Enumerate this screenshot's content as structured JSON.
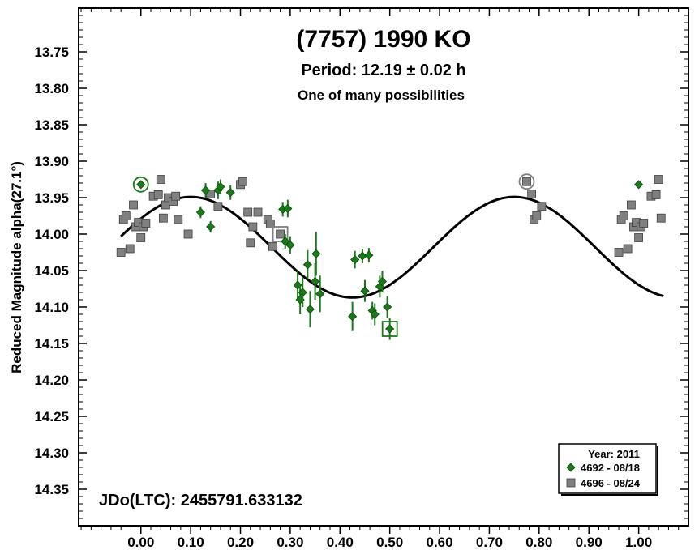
{
  "chart_data": {
    "type": "scatter",
    "title": "(7757) 1990 KO",
    "subtitle": "Period: 12.19 ± 0.02 h",
    "note": "One of many possibilities",
    "ylabel": "Reduced Magnitude alpha(27.1°)",
    "jd_label": "JDo(LTC): 2455791.633132",
    "xlim": [
      -0.125,
      1.1
    ],
    "ylim": [
      14.4,
      13.69
    ],
    "y_inverted": true,
    "x_ticks": [
      "0.00",
      "0.10",
      "0.20",
      "0.30",
      "0.40",
      "0.50",
      "0.60",
      "0.70",
      "0.80",
      "0.90",
      "1.00"
    ],
    "y_ticks": [
      "13.75",
      "13.80",
      "13.85",
      "13.90",
      "13.95",
      "14.00",
      "14.05",
      "14.10",
      "14.15",
      "14.20",
      "14.25",
      "14.30",
      "14.35"
    ],
    "legend": {
      "title": "Year: 2011",
      "position": "bottom-right"
    },
    "colors": {
      "green": "#1a7a1a",
      "gray": "#808080",
      "curve": "#000000"
    },
    "fit_curve": {
      "mean": 14.018,
      "amplitude": 0.069,
      "phase_of_max_brightness": 0.1,
      "harmonic_period": 0.65
    },
    "series": [
      {
        "name": "4692 - 08/18",
        "marker": "diamond",
        "color": "#1a7a1a",
        "points": [
          {
            "x": 0.0,
            "y": 13.932,
            "err": 0.0,
            "circled": true
          },
          {
            "x": 0.12,
            "y": 13.97,
            "err": 0.008
          },
          {
            "x": 0.13,
            "y": 13.94,
            "err": 0.01
          },
          {
            "x": 0.14,
            "y": 13.99,
            "err": 0.008
          },
          {
            "x": 0.155,
            "y": 13.94,
            "err": 0.012
          },
          {
            "x": 0.16,
            "y": 13.935,
            "err": 0.01
          },
          {
            "x": 0.18,
            "y": 13.943,
            "err": 0.01
          },
          {
            "x": 0.285,
            "y": 13.966,
            "err": 0.01
          },
          {
            "x": 0.295,
            "y": 13.965,
            "err": 0.012
          },
          {
            "x": 0.29,
            "y": 14.01,
            "err": 0.01
          },
          {
            "x": 0.3,
            "y": 14.015,
            "err": 0.012
          },
          {
            "x": 0.315,
            "y": 14.07,
            "err": 0.02
          },
          {
            "x": 0.32,
            "y": 14.09,
            "err": 0.02
          },
          {
            "x": 0.325,
            "y": 14.08,
            "err": 0.02
          },
          {
            "x": 0.335,
            "y": 14.042,
            "err": 0.02
          },
          {
            "x": 0.34,
            "y": 14.103,
            "err": 0.025
          },
          {
            "x": 0.35,
            "y": 14.065,
            "err": 0.025
          },
          {
            "x": 0.352,
            "y": 14.027,
            "err": 0.03
          },
          {
            "x": 0.36,
            "y": 14.082,
            "err": 0.025
          },
          {
            "x": 0.425,
            "y": 14.113,
            "err": 0.02
          },
          {
            "x": 0.43,
            "y": 14.035,
            "err": 0.012
          },
          {
            "x": 0.445,
            "y": 14.03,
            "err": 0.01
          },
          {
            "x": 0.45,
            "y": 14.078,
            "err": 0.015
          },
          {
            "x": 0.458,
            "y": 14.029,
            "err": 0.01
          },
          {
            "x": 0.465,
            "y": 14.105,
            "err": 0.012
          },
          {
            "x": 0.47,
            "y": 14.11,
            "err": 0.015
          },
          {
            "x": 0.48,
            "y": 14.072,
            "err": 0.015
          },
          {
            "x": 0.485,
            "y": 14.065,
            "err": 0.015
          },
          {
            "x": 0.495,
            "y": 14.1,
            "err": 0.015
          },
          {
            "x": 0.5,
            "y": 14.13,
            "err": 0.015,
            "boxed": true
          },
          {
            "x": 1.0,
            "y": 13.932,
            "err": 0.0
          }
        ]
      },
      {
        "name": "4696 - 08/24",
        "marker": "square",
        "color": "#808080",
        "points": [
          {
            "x": -0.04,
            "y": 14.025
          },
          {
            "x": -0.035,
            "y": 13.98
          },
          {
            "x": -0.03,
            "y": 13.975
          },
          {
            "x": -0.022,
            "y": 14.02
          },
          {
            "x": -0.015,
            "y": 13.96
          },
          {
            "x": -0.01,
            "y": 13.99
          },
          {
            "x": -0.005,
            "y": 13.984
          },
          {
            "x": 0.0,
            "y": 14.005
          },
          {
            "x": 0.005,
            "y": 13.99
          },
          {
            "x": 0.01,
            "y": 13.985
          },
          {
            "x": 0.025,
            "y": 13.948
          },
          {
            "x": 0.035,
            "y": 13.946
          },
          {
            "x": 0.04,
            "y": 13.925
          },
          {
            "x": 0.045,
            "y": 13.978
          },
          {
            "x": 0.05,
            "y": 13.96
          },
          {
            "x": 0.055,
            "y": 13.95
          },
          {
            "x": 0.065,
            "y": 13.955
          },
          {
            "x": 0.07,
            "y": 13.948
          },
          {
            "x": 0.075,
            "y": 13.98
          },
          {
            "x": 0.095,
            "y": 14.0
          },
          {
            "x": 0.14,
            "y": 13.945
          },
          {
            "x": 0.155,
            "y": 13.962
          },
          {
            "x": 0.2,
            "y": 13.932
          },
          {
            "x": 0.205,
            "y": 13.928
          },
          {
            "x": 0.215,
            "y": 13.97
          },
          {
            "x": 0.22,
            "y": 14.012
          },
          {
            "x": 0.225,
            "y": 13.99
          },
          {
            "x": 0.235,
            "y": 13.97
          },
          {
            "x": 0.255,
            "y": 13.98
          },
          {
            "x": 0.26,
            "y": 13.986
          },
          {
            "x": 0.265,
            "y": 14.017
          },
          {
            "x": 0.28,
            "y": 14.0,
            "boxed": true
          },
          {
            "x": 0.775,
            "y": 13.928,
            "circled": true
          },
          {
            "x": 0.785,
            "y": 13.945
          },
          {
            "x": 0.79,
            "y": 13.98
          },
          {
            "x": 0.795,
            "y": 13.975
          },
          {
            "x": 0.805,
            "y": 13.962
          },
          {
            "x": 0.96,
            "y": 14.025
          },
          {
            "x": 0.965,
            "y": 13.98
          },
          {
            "x": 0.97,
            "y": 13.975
          },
          {
            "x": 0.978,
            "y": 14.02
          },
          {
            "x": 0.985,
            "y": 13.96
          },
          {
            "x": 0.99,
            "y": 13.99
          },
          {
            "x": 0.995,
            "y": 13.984
          },
          {
            "x": 1.0,
            "y": 14.005
          },
          {
            "x": 1.005,
            "y": 13.99
          },
          {
            "x": 1.01,
            "y": 13.985
          },
          {
            "x": 1.025,
            "y": 13.948
          },
          {
            "x": 1.035,
            "y": 13.946
          },
          {
            "x": 1.04,
            "y": 13.925
          },
          {
            "x": 1.045,
            "y": 13.978
          }
        ]
      }
    ]
  }
}
